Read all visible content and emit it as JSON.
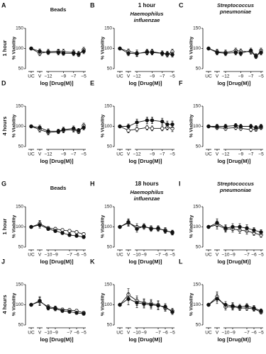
{
  "chart_data": [
    {
      "type": "line",
      "panel": "A",
      "title_lines": [
        "Beads"
      ],
      "title_style": "normal",
      "row_label": "1 hour",
      "ylabel": "% Viability",
      "xlabel": "log [Drug(M)]",
      "x": [
        "UC",
        "V",
        -12,
        -10,
        -9,
        -7,
        -6,
        -5
      ],
      "xlim": [
        -12,
        -5
      ],
      "xticks": [
        {
          "value": -12,
          "label": "−12"
        },
        {
          "value": -9,
          "label": "−9"
        },
        {
          "value": -7,
          "label": "−7"
        },
        {
          "value": -5,
          "label": "−5"
        }
      ],
      "ylim": [
        50,
        150
      ],
      "yticks": [
        50,
        100,
        150
      ],
      "series": [
        {
          "color": "#111",
          "marker_fill": "#fff",
          "values": [
            100,
            88,
            92,
            93,
            92,
            90,
            85,
            97
          ],
          "errors": [
            0,
            6,
            6,
            5,
            6,
            6,
            5,
            6
          ]
        },
        {
          "color": "#111",
          "marker_fill": "#111",
          "values": [
            100,
            93,
            90,
            90,
            88,
            88,
            87,
            93
          ],
          "errors": [
            0,
            6,
            5,
            6,
            5,
            6,
            6,
            6
          ]
        }
      ]
    },
    {
      "type": "line",
      "panel": "B",
      "header": "1 hour",
      "title_lines": [
        "Haemophilus",
        "influenzae"
      ],
      "title_style": "italic",
      "ylabel": "% Viability",
      "xlabel": "log [Drug(M)]",
      "x": [
        "UC",
        "V",
        -12,
        -10,
        -9,
        -7,
        -6,
        -5
      ],
      "xlim": [
        -12,
        -5
      ],
      "xticks": [
        {
          "value": -12,
          "label": "−12"
        },
        {
          "value": -9,
          "label": "−9"
        },
        {
          "value": -7,
          "label": "−7"
        },
        {
          "value": -5,
          "label": "−5"
        }
      ],
      "ylim": [
        50,
        150
      ],
      "yticks": [
        50,
        100,
        150
      ],
      "series": [
        {
          "color": "#111",
          "marker_fill": "#fff",
          "values": [
            100,
            93,
            88,
            90,
            92,
            88,
            85,
            92
          ],
          "errors": [
            0,
            6,
            8,
            6,
            6,
            6,
            6,
            6
          ]
        },
        {
          "color": "#111",
          "marker_fill": "#111",
          "values": [
            100,
            88,
            87,
            92,
            90,
            88,
            87,
            85
          ],
          "errors": [
            0,
            6,
            6,
            6,
            6,
            6,
            6,
            6
          ]
        }
      ]
    },
    {
      "type": "line",
      "panel": "C",
      "title_lines": [
        "Streptococcus",
        "pneumoniae"
      ],
      "title_style": "italic",
      "ylabel": "% Viability",
      "xlabel": "log [Drug(M)]",
      "x": [
        "UC",
        "V",
        -12,
        -10,
        -9,
        -7,
        -6,
        -5
      ],
      "xlim": [
        -12,
        -5
      ],
      "xticks": [
        {
          "value": -12,
          "label": "−12"
        },
        {
          "value": -9,
          "label": "−9"
        },
        {
          "value": -7,
          "label": "−7"
        },
        {
          "value": -5,
          "label": "−5"
        }
      ],
      "ylim": [
        50,
        150
      ],
      "yticks": [
        50,
        100,
        150
      ],
      "series": [
        {
          "color": "#111",
          "marker_fill": "#fff",
          "values": [
            100,
            92,
            90,
            95,
            93,
            92,
            80,
            95
          ],
          "errors": [
            0,
            6,
            6,
            6,
            6,
            6,
            5,
            6
          ]
        },
        {
          "color": "#111",
          "marker_fill": "#111",
          "values": [
            100,
            90,
            88,
            90,
            88,
            95,
            82,
            90
          ],
          "errors": [
            0,
            6,
            6,
            6,
            6,
            6,
            5,
            6
          ]
        }
      ]
    },
    {
      "type": "line",
      "panel": "D",
      "row_label": "4 hours",
      "ylabel": "% Viability",
      "xlabel": "log [Drug(M)]",
      "x": [
        "UC",
        "V",
        -12,
        -10,
        -9,
        -7,
        -6,
        -5
      ],
      "xlim": [
        -12,
        -5
      ],
      "xticks": [
        {
          "value": -12,
          "label": "−12"
        },
        {
          "value": -9,
          "label": "−9"
        },
        {
          "value": -7,
          "label": "−7"
        },
        {
          "value": -5,
          "label": "−5"
        }
      ],
      "ylim": [
        50,
        150
      ],
      "yticks": [
        50,
        100,
        150
      ],
      "series": [
        {
          "color": "#111",
          "marker_fill": "#fff",
          "values": [
            100,
            92,
            85,
            87,
            90,
            92,
            87,
            102
          ],
          "errors": [
            0,
            6,
            6,
            5,
            6,
            6,
            5,
            6
          ]
        },
        {
          "color": "#111",
          "marker_fill": "#111",
          "values": [
            100,
            97,
            88,
            88,
            92,
            95,
            90,
            97
          ],
          "errors": [
            0,
            6,
            6,
            5,
            6,
            6,
            5,
            6
          ]
        }
      ]
    },
    {
      "type": "line",
      "panel": "E",
      "ylabel": "% Viability",
      "xlabel": "log [Drug(M)]",
      "x": [
        "UC",
        "V",
        -12,
        -10,
        -9,
        -7,
        -6,
        -5
      ],
      "xlim": [
        -12,
        -5
      ],
      "xticks": [
        {
          "value": -12,
          "label": "−12"
        },
        {
          "value": -9,
          "label": "−9"
        },
        {
          "value": -7,
          "label": "−7"
        },
        {
          "value": -5,
          "label": "−5"
        }
      ],
      "ylim": [
        50,
        150
      ],
      "yticks": [
        50,
        100,
        150
      ],
      "series": [
        {
          "color": "#111",
          "marker_fill": "#fff",
          "values": [
            100,
            90,
            93,
            97,
            95,
            95,
            97,
            95
          ],
          "errors": [
            0,
            6,
            6,
            6,
            6,
            6,
            6,
            8
          ]
        },
        {
          "color": "#111",
          "marker_fill": "#111",
          "values": [
            100,
            100,
            110,
            115,
            115,
            112,
            105,
            105
          ],
          "errors": [
            0,
            6,
            8,
            8,
            8,
            8,
            8,
            8
          ]
        }
      ]
    },
    {
      "type": "line",
      "panel": "F",
      "ylabel": "% Viability",
      "xlabel": "log [Drug(M)]",
      "x": [
        "UC",
        "V",
        -12,
        -10,
        -9,
        -7,
        -6,
        -5
      ],
      "xlim": [
        -12,
        -5
      ],
      "xticks": [
        {
          "value": -12,
          "label": "−12"
        },
        {
          "value": -9,
          "label": "−9"
        },
        {
          "value": -7,
          "label": "−7"
        },
        {
          "value": -5,
          "label": "−5"
        }
      ],
      "ylim": [
        50,
        150
      ],
      "yticks": [
        50,
        100,
        150
      ],
      "series": [
        {
          "color": "#111",
          "marker_fill": "#fff",
          "values": [
            100,
            97,
            95,
            97,
            95,
            92,
            93,
            97
          ],
          "errors": [
            0,
            5,
            5,
            5,
            5,
            5,
            5,
            5
          ]
        },
        {
          "color": "#111",
          "marker_fill": "#111",
          "values": [
            100,
            100,
            100,
            102,
            100,
            100,
            97,
            100
          ],
          "errors": [
            0,
            5,
            5,
            5,
            5,
            5,
            5,
            5
          ]
        }
      ]
    },
    {
      "type": "line",
      "panel": "G",
      "title_lines": [
        "Beads"
      ],
      "title_style": "normal",
      "row_label": "1 hour",
      "ylabel": "% Viability",
      "xlabel": "log [Drug(M)]",
      "x": [
        "UC",
        "V",
        -10,
        -9,
        -8,
        -7,
        -6,
        -5
      ],
      "xlim": [
        -10,
        -5
      ],
      "xticks": [
        {
          "value": -10,
          "label": "−10"
        },
        {
          "value": -9,
          "label": "−9"
        },
        {
          "value": -7,
          "label": "−7"
        },
        {
          "value": -6,
          "label": "−6"
        },
        {
          "value": -5,
          "label": "−5"
        }
      ],
      "ylim": [
        50,
        150
      ],
      "yticks": [
        50,
        100,
        150
      ],
      "series": [
        {
          "color": "#111",
          "marker_fill": "#fff",
          "values": [
            100,
            108,
            97,
            95,
            92,
            90,
            87,
            82
          ],
          "errors": [
            0,
            8,
            4,
            4,
            4,
            4,
            4,
            4
          ]
        },
        {
          "color": "#111",
          "marker_fill": "#111",
          "values": [
            100,
            105,
            95,
            90,
            85,
            80,
            78,
            75
          ],
          "errors": [
            0,
            8,
            4,
            4,
            4,
            4,
            4,
            4
          ]
        }
      ]
    },
    {
      "type": "line",
      "panel": "H",
      "header": "18 hours",
      "title_lines": [
        "Haemophilus",
        "influenzae"
      ],
      "title_style": "italic",
      "ylabel": "% Viability",
      "xlabel": "log [Drug(M)]",
      "x": [
        "UC",
        "V",
        -10,
        -9,
        -8,
        -7,
        -6,
        -5
      ],
      "xlim": [
        -10,
        -5
      ],
      "xticks": [
        {
          "value": -10,
          "label": "−10"
        },
        {
          "value": -9,
          "label": "−9"
        },
        {
          "value": -7,
          "label": "−7"
        },
        {
          "value": -6,
          "label": "−6"
        },
        {
          "value": -5,
          "label": "−5"
        }
      ],
      "ylim": [
        50,
        150
      ],
      "yticks": [
        50,
        100,
        150
      ],
      "series": [
        {
          "color": "#111",
          "marker_fill": "#fff",
          "values": [
            100,
            110,
            100,
            100,
            97,
            95,
            92,
            85
          ],
          "errors": [
            0,
            8,
            8,
            6,
            6,
            6,
            6,
            5
          ]
        },
        {
          "color": "#111",
          "marker_fill": "#111",
          "values": [
            100,
            112,
            95,
            102,
            95,
            97,
            90,
            87
          ],
          "errors": [
            0,
            8,
            8,
            6,
            6,
            6,
            6,
            5
          ]
        }
      ]
    },
    {
      "type": "line",
      "panel": "I",
      "title_lines": [
        "Streptococcus",
        "pneumoniae"
      ],
      "title_style": "italic",
      "ylabel": "% Viability",
      "xlabel": "log [Drug(M)]",
      "x": [
        "UC",
        "V",
        -10,
        -9,
        -8,
        -7,
        -6,
        -5
      ],
      "xlim": [
        -10,
        -5
      ],
      "xticks": [
        {
          "value": -10,
          "label": "−10"
        },
        {
          "value": -9,
          "label": "−9"
        },
        {
          "value": -7,
          "label": "−7"
        },
        {
          "value": -6,
          "label": "−6"
        },
        {
          "value": -5,
          "label": "−5"
        }
      ],
      "ylim": [
        50,
        150
      ],
      "yticks": [
        50,
        100,
        150
      ],
      "series": [
        {
          "color": "#111",
          "marker_fill": "#fff",
          "values": [
            100,
            105,
            95,
            95,
            92,
            90,
            85,
            80
          ],
          "errors": [
            0,
            10,
            8,
            8,
            8,
            8,
            6,
            6
          ]
        },
        {
          "color": "#111",
          "marker_fill": "#111",
          "values": [
            100,
            110,
            97,
            100,
            100,
            97,
            92,
            87
          ],
          "errors": [
            0,
            10,
            8,
            8,
            8,
            8,
            6,
            6
          ]
        }
      ]
    },
    {
      "type": "line",
      "panel": "J",
      "row_label": "4 hours",
      "ylabel": "% Viability",
      "xlabel": "log [Drug(M)]",
      "x": [
        "UC",
        "V",
        -10,
        -9,
        -8,
        -7,
        -6,
        -5
      ],
      "xlim": [
        -10,
        -5
      ],
      "xticks": [
        {
          "value": -10,
          "label": "−10"
        },
        {
          "value": -9,
          "label": "−9"
        },
        {
          "value": -7,
          "label": "−7"
        },
        {
          "value": -6,
          "label": "−6"
        },
        {
          "value": -5,
          "label": "−5"
        }
      ],
      "ylim": [
        50,
        150
      ],
      "yticks": [
        50,
        100,
        150
      ],
      "series": [
        {
          "color": "#111",
          "marker_fill": "#fff",
          "values": [
            100,
            108,
            95,
            92,
            88,
            87,
            85,
            80
          ],
          "errors": [
            0,
            10,
            5,
            5,
            4,
            4,
            4,
            4
          ]
        },
        {
          "color": "#111",
          "marker_fill": "#111",
          "values": [
            100,
            110,
            92,
            90,
            85,
            83,
            80,
            78
          ],
          "errors": [
            0,
            10,
            5,
            5,
            4,
            4,
            4,
            4
          ]
        }
      ]
    },
    {
      "type": "line",
      "panel": "K",
      "ylabel": "% Viability",
      "xlabel": "log [Drug(M)]",
      "x": [
        "UC",
        "V",
        -10,
        -9,
        -8,
        -7,
        -6,
        -5
      ],
      "xlim": [
        -10,
        -5
      ],
      "xticks": [
        {
          "value": -10,
          "label": "−10"
        },
        {
          "value": -9,
          "label": "−9"
        },
        {
          "value": -7,
          "label": "−7"
        },
        {
          "value": -6,
          "label": "−6"
        },
        {
          "value": -5,
          "label": "−5"
        }
      ],
      "ylim": [
        50,
        150
      ],
      "yticks": [
        50,
        100,
        150
      ],
      "series": [
        {
          "color": "#111",
          "marker_fill": "#fff",
          "values": [
            100,
            125,
            110,
            105,
            103,
            100,
            92,
            85
          ],
          "errors": [
            0,
            15,
            12,
            10,
            10,
            10,
            8,
            6
          ]
        },
        {
          "color": "#111",
          "marker_fill": "#111",
          "values": [
            100,
            115,
            105,
            102,
            100,
            98,
            95,
            82
          ],
          "errors": [
            0,
            15,
            12,
            10,
            10,
            10,
            8,
            6
          ]
        }
      ]
    },
    {
      "type": "line",
      "panel": "L",
      "ylabel": "% Viability",
      "xlabel": "log [Drug(M)]",
      "x": [
        "UC",
        "V",
        -10,
        -9,
        -8,
        -7,
        -6,
        -5
      ],
      "xlim": [
        -10,
        -5
      ],
      "xticks": [
        {
          "value": -10,
          "label": "−10"
        },
        {
          "value": -9,
          "label": "−9"
        },
        {
          "value": -7,
          "label": "−7"
        },
        {
          "value": -6,
          "label": "−6"
        },
        {
          "value": -5,
          "label": "−5"
        }
      ],
      "ylim": [
        50,
        150
      ],
      "yticks": [
        50,
        100,
        150
      ],
      "series": [
        {
          "color": "#111",
          "marker_fill": "#fff",
          "values": [
            100,
            120,
            95,
            95,
            92,
            92,
            90,
            82
          ],
          "errors": [
            0,
            12,
            8,
            8,
            6,
            6,
            6,
            5
          ]
        },
        {
          "color": "#111",
          "marker_fill": "#111",
          "values": [
            100,
            115,
            100,
            97,
            95,
            97,
            92,
            85
          ],
          "errors": [
            0,
            12,
            8,
            8,
            6,
            6,
            6,
            5
          ]
        }
      ]
    }
  ]
}
